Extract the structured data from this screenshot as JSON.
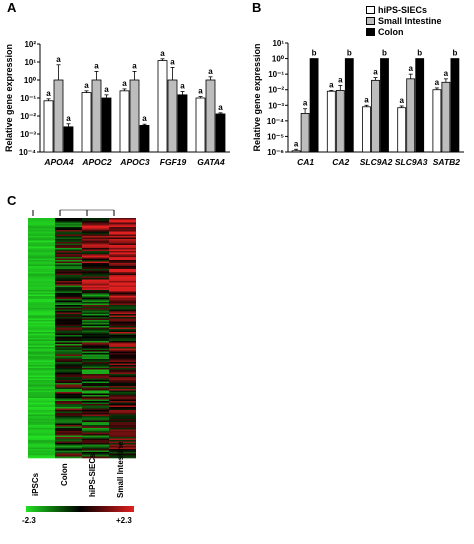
{
  "panels": {
    "a": "A",
    "b": "B",
    "c": "C"
  },
  "colors": {
    "hips_siecs": "#ffffff",
    "small_intestine": "#bdbdbd",
    "colon": "#000000",
    "heat_low": "#23e023",
    "heat_mid": "#000000",
    "heat_high": "#e02020"
  },
  "legend": [
    {
      "name": "hiPS-SIECs",
      "color": "#ffffff"
    },
    {
      "name": "Small Intestine",
      "color": "#bdbdbd"
    },
    {
      "name": "Colon",
      "color": "#000000"
    }
  ],
  "chart_data": [
    {
      "type": "bar",
      "panel": "A",
      "ylabel": "Relative  gene expression",
      "yscale": "log",
      "ylim": [
        0.0001,
        100
      ],
      "yticks": [
        "10⁻⁴",
        "10⁻³",
        "10⁻²",
        "10⁻¹",
        "10⁰",
        "10¹",
        "10²"
      ],
      "categories": [
        "APOA4",
        "APOC2",
        "APOC3",
        "FGF19",
        "GATA4"
      ],
      "series": [
        {
          "name": "hiPS-SIECs",
          "values": [
            0.07,
            0.2,
            0.25,
            12,
            0.1
          ],
          "errors": [
            0.02,
            0.05,
            0.07,
            3,
            0.02
          ]
        },
        {
          "name": "Small Intestine",
          "values": [
            1,
            1,
            1,
            1,
            1
          ],
          "errors": [
            6,
            2,
            2,
            4,
            0.5
          ]
        },
        {
          "name": "Colon",
          "values": [
            0.0025,
            0.1,
            0.003,
            0.15,
            0.013
          ],
          "errors": [
            0.0012,
            0.05,
            0.0005,
            0.08,
            0.002
          ]
        }
      ],
      "annotations": [
        [
          "a",
          "a",
          "a"
        ],
        [
          "a",
          "a",
          "a"
        ],
        [
          "a",
          "a",
          "a"
        ],
        [
          "a",
          "a",
          "a"
        ],
        [
          "a",
          "a",
          "a"
        ]
      ]
    },
    {
      "type": "bar",
      "panel": "B",
      "ylabel": "Relative  gene expression",
      "yscale": "log",
      "ylim": [
        1e-06,
        10
      ],
      "yticks": [
        "10⁻⁶",
        "10⁻⁵",
        "10⁻⁴",
        "10⁻³",
        "10⁻²",
        "10⁻¹",
        "10⁰",
        "10¹"
      ],
      "categories": [
        "CA1",
        "CA2",
        "SLC9A2",
        "SLC9A3",
        "SATB2"
      ],
      "series": [
        {
          "name": "hiPS-SIECs",
          "values": [
            1.2e-06,
            0.008,
            0.0008,
            0.0007,
            0.01
          ],
          "errors": [
            3e-07,
            0.001,
            0.0002,
            0.0002,
            0.003
          ]
        },
        {
          "name": "Small Intestine",
          "values": [
            0.0003,
            0.009,
            0.04,
            0.05,
            0.03
          ],
          "errors": [
            0.0003,
            0.01,
            0.02,
            0.05,
            0.02
          ]
        },
        {
          "name": "Colon",
          "values": [
            1,
            1,
            1,
            1,
            1
          ],
          "errors": [
            0,
            0,
            0,
            0,
            0
          ]
        }
      ],
      "annotations": [
        [
          "a",
          "a",
          "b"
        ],
        [
          "a",
          "a",
          "b"
        ],
        [
          "a",
          "a",
          "b"
        ],
        [
          "a",
          "a",
          "b"
        ],
        [
          "a",
          "a",
          "b"
        ]
      ]
    },
    {
      "type": "heatmap",
      "panel": "C",
      "columns": [
        "iPSCs",
        "Colon",
        "hiPS-SIECs",
        "Small Intestine"
      ],
      "color_scale": {
        "min_label": "-2.3",
        "max_label": "+2.3",
        "min": -2.3,
        "max": 2.3
      }
    }
  ]
}
